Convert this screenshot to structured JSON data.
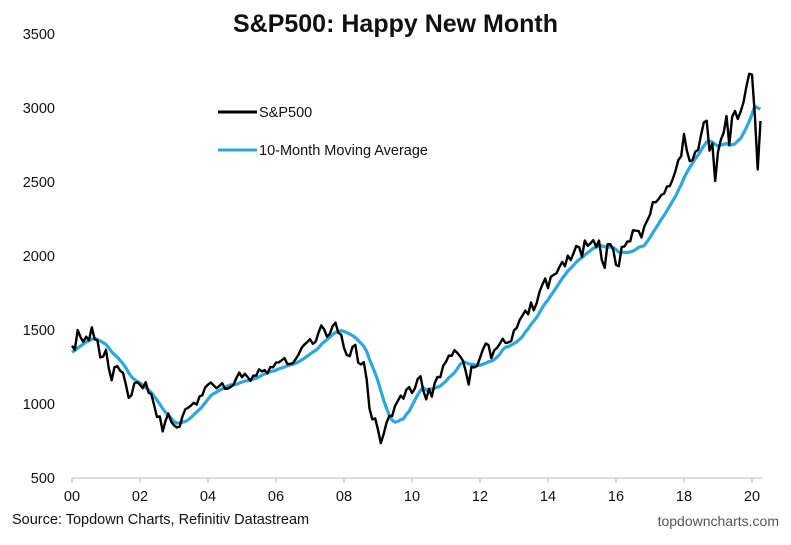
{
  "chart_data": {
    "type": "line",
    "title": "S&P500: Happy New Month",
    "xlabel": "",
    "ylabel": "",
    "ylim": [
      500,
      3500
    ],
    "yticks": [
      "3500",
      "3000",
      "2500",
      "2000",
      "1500",
      "1000",
      "500"
    ],
    "ytick_values": [
      3500,
      3000,
      2500,
      2000,
      1500,
      1000,
      500
    ],
    "xlim": [
      2000.0,
      2020.3
    ],
    "xticks": [
      "00",
      "02",
      "04",
      "06",
      "08",
      "10",
      "12",
      "14",
      "16",
      "18",
      "20"
    ],
    "xtick_values": [
      2000,
      2002,
      2004,
      2006,
      2008,
      2010,
      2012,
      2014,
      2016,
      2018,
      2020
    ],
    "grid": false,
    "legend": {
      "position": "top-left-center",
      "entries": [
        "S&P500",
        "10-Month Moving Average"
      ]
    },
    "x_start": 2000.0,
    "x_step_months": 1,
    "series": [
      {
        "name": "S&P500",
        "color": "#000000",
        "values": [
          1394,
          1366,
          1499,
          1452,
          1421,
          1455,
          1431,
          1518,
          1437,
          1429,
          1315,
          1320,
          1366,
          1240,
          1160,
          1249,
          1256,
          1224,
          1211,
          1134,
          1041,
          1060,
          1139,
          1148,
          1130,
          1107,
          1147,
          1077,
          1067,
          990,
          912,
          916,
          815,
          886,
          936,
          880,
          856,
          841,
          848,
          917,
          964,
          975,
          990,
          1008,
          996,
          1051,
          1058,
          1112,
          1131,
          1145,
          1126,
          1107,
          1121,
          1141,
          1102,
          1104,
          1115,
          1130,
          1174,
          1212,
          1181,
          1204,
          1181,
          1157,
          1192,
          1191,
          1234,
          1220,
          1229,
          1207,
          1249,
          1248,
          1280,
          1281,
          1295,
          1311,
          1270,
          1270,
          1277,
          1304,
          1336,
          1378,
          1401,
          1418,
          1438,
          1407,
          1421,
          1482,
          1531,
          1503,
          1455,
          1474,
          1527,
          1549,
          1481,
          1468,
          1379,
          1331,
          1323,
          1386,
          1400,
          1280,
          1267,
          1283,
          1165,
          969,
          896,
          903,
          826,
          735,
          798,
          873,
          919,
          919,
          987,
          1021,
          1057,
          1036,
          1096,
          1115,
          1074,
          1104,
          1169,
          1187,
          1089,
          1031,
          1102,
          1049,
          1141,
          1183,
          1181,
          1258,
          1286,
          1327,
          1326,
          1364,
          1345,
          1321,
          1292,
          1219,
          1131,
          1253,
          1247,
          1258,
          1312,
          1366,
          1408,
          1398,
          1310,
          1362,
          1379,
          1407,
          1441,
          1412,
          1416,
          1426,
          1498,
          1515,
          1569,
          1598,
          1631,
          1606,
          1686,
          1633,
          1682,
          1757,
          1806,
          1848,
          1783,
          1859,
          1872,
          1884,
          1924,
          1960,
          1931,
          2003,
          1972,
          2018,
          2068,
          2059,
          1995,
          2105,
          2068,
          2086,
          2107,
          2063,
          2104,
          1972,
          1920,
          2079,
          2080,
          2044,
          1940,
          1932,
          2060,
          2065,
          2097,
          2099,
          2174,
          2171,
          2168,
          2126,
          2199,
          2239,
          2279,
          2364,
          2363,
          2384,
          2412,
          2423,
          2470,
          2472,
          2519,
          2575,
          2648,
          2674,
          2824,
          2714,
          2641,
          2648,
          2705,
          2718,
          2816,
          2902,
          2914,
          2712,
          2760,
          2507,
          2704,
          2784,
          2834,
          2946,
          2752,
          2942,
          2980,
          2926,
          2977,
          3038,
          3141,
          3231,
          3226,
          2954,
          2585,
          2912
        ]
      },
      {
        "name": "10-Month Moving Average",
        "color": "#29a9e0",
        "values": [
          1350,
          1362,
          1378,
          1392,
          1405,
          1418,
          1428,
          1438,
          1444,
          1436,
          1426,
          1415,
          1402,
          1380,
          1352,
          1333,
          1317,
          1294,
          1272,
          1245,
          1211,
          1183,
          1167,
          1152,
          1143,
          1128,
          1111,
          1096,
          1077,
          1052,
          1026,
          999,
          968,
          944,
          924,
          905,
          883,
          870,
          873,
          877,
          882,
          893,
          909,
          928,
          946,
          963,
          983,
          1009,
          1032,
          1057,
          1070,
          1080,
          1092,
          1102,
          1113,
          1122,
          1130,
          1131,
          1132,
          1141,
          1148,
          1155,
          1158,
          1162,
          1169,
          1175,
          1183,
          1193,
          1204,
          1212,
          1218,
          1222,
          1229,
          1237,
          1244,
          1250,
          1258,
          1264,
          1268,
          1275,
          1286,
          1297,
          1309,
          1323,
          1337,
          1350,
          1363,
          1380,
          1402,
          1420,
          1436,
          1451,
          1470,
          1483,
          1490,
          1496,
          1490,
          1482,
          1473,
          1462,
          1449,
          1430,
          1410,
          1390,
          1355,
          1302,
          1255,
          1208,
          1155,
          1089,
          1025,
          970,
          924,
          890,
          877,
          882,
          893,
          901,
          929,
          952,
          989,
          1025,
          1061,
          1092,
          1109,
          1094,
          1099,
          1102,
          1107,
          1114,
          1121,
          1138,
          1155,
          1178,
          1194,
          1212,
          1238,
          1268,
          1282,
          1281,
          1270,
          1269,
          1266,
          1260,
          1262,
          1268,
          1276,
          1285,
          1289,
          1300,
          1317,
          1336,
          1367,
          1383,
          1388,
          1398,
          1408,
          1421,
          1437,
          1456,
          1485,
          1509,
          1537,
          1561,
          1585,
          1617,
          1650,
          1680,
          1703,
          1733,
          1760,
          1789,
          1818,
          1848,
          1872,
          1897,
          1918,
          1937,
          1958,
          1977,
          1989,
          2007,
          2022,
          2037,
          2052,
          2059,
          2066,
          2069,
          2062,
          2060,
          2061,
          2058,
          2043,
          2026,
          2025,
          2024,
          2023,
          2027,
          2034,
          2044,
          2059,
          2064,
          2070,
          2098,
          2125,
          2156,
          2187,
          2216,
          2247,
          2276,
          2306,
          2337,
          2372,
          2402,
          2443,
          2482,
          2527,
          2562,
          2597,
          2628,
          2657,
          2683,
          2714,
          2744,
          2770,
          2776,
          2770,
          2754,
          2742,
          2750,
          2754,
          2760,
          2748,
          2752,
          2758,
          2778,
          2795,
          2829,
          2867,
          2909,
          2958,
          3011,
          3000,
          2993
        ]
      }
    ],
    "source": "Source: Topdown Charts, Refinitiv Datastream",
    "watermark": "topdowncharts.com"
  }
}
